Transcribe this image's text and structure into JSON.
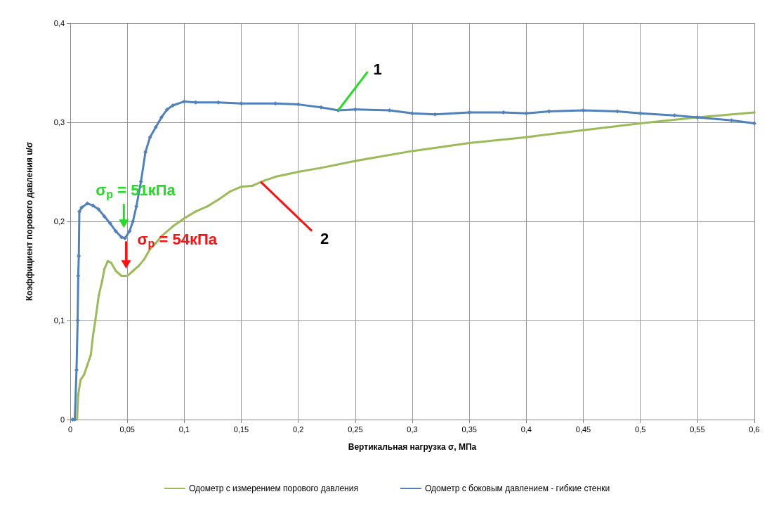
{
  "chart_data": {
    "type": "line",
    "xlabel": "Вертикальная нагрузка σ, МПа",
    "ylabel": "Коэффициент порового давления u/σ",
    "xlim": [
      0,
      0.6
    ],
    "xticks": [
      0,
      {
        "value": 0.05,
        "label": "0,05"
      },
      {
        "value": 0.1,
        "label": "0,1"
      },
      {
        "value": 0.15,
        "label": "0,15"
      },
      {
        "value": 0.2,
        "label": "0,2"
      },
      {
        "value": 0.25,
        "label": "0,25"
      },
      {
        "value": 0.3,
        "label": "0,3"
      },
      {
        "value": 0.35,
        "label": "0,35"
      },
      {
        "value": 0.4,
        "label": "0,4"
      },
      {
        "value": 0.45,
        "label": "0,45"
      },
      {
        "value": 0.5,
        "label": "0,5"
      },
      {
        "value": 0.55,
        "label": "0,55"
      },
      {
        "value": 0.6,
        "label": "0,6"
      }
    ],
    "ylim": [
      0,
      0.4
    ],
    "yticks": [
      0,
      {
        "value": 0.1,
        "label": "0,1"
      },
      {
        "value": 0.2,
        "label": "0,2"
      },
      {
        "value": 0.3,
        "label": "0,3"
      },
      {
        "value": 0.4,
        "label": "0,4"
      }
    ],
    "grid": true,
    "legend": "bottom",
    "marker": "diamond",
    "line_style": "solid",
    "series": [
      {
        "name": "Одометр с измерением порового давления",
        "color": "#9bbb59",
        "x": [
          0.006,
          0.007,
          0.009,
          0.012,
          0.015,
          0.018,
          0.02,
          0.022,
          0.025,
          0.028,
          0.03,
          0.033,
          0.036,
          0.04,
          0.045,
          0.05,
          0.055,
          0.06,
          0.065,
          0.07,
          0.075,
          0.08,
          0.09,
          0.1,
          0.11,
          0.12,
          0.13,
          0.14,
          0.15,
          0.16,
          0.17,
          0.18,
          0.2,
          0.22,
          0.25,
          0.3,
          0.35,
          0.4,
          0.45,
          0.5,
          0.55,
          0.6
        ],
        "values": [
          0,
          0.025,
          0.04,
          0.045,
          0.055,
          0.065,
          0.085,
          0.1,
          0.125,
          0.14,
          0.152,
          0.16,
          0.158,
          0.15,
          0.145,
          0.145,
          0.15,
          0.155,
          0.162,
          0.172,
          0.178,
          0.185,
          0.195,
          0.203,
          0.21,
          0.215,
          0.222,
          0.23,
          0.235,
          0.236,
          0.241,
          0.245,
          0.25,
          0.254,
          0.261,
          0.271,
          0.279,
          0.285,
          0.292,
          0.299,
          0.305,
          0.31
        ]
      },
      {
        "name": "Одометр с боковым давлением - гибкие стенки",
        "color": "#4f81bd",
        "x": [
          0.002,
          0.004,
          0.0055,
          0.0065,
          0.007,
          0.0075,
          0.008,
          0.01,
          0.015,
          0.02,
          0.025,
          0.03,
          0.035,
          0.04,
          0.045,
          0.048,
          0.052,
          0.055,
          0.058,
          0.062,
          0.066,
          0.07,
          0.075,
          0.08,
          0.085,
          0.09,
          0.1,
          0.11,
          0.13,
          0.15,
          0.18,
          0.2,
          0.22,
          0.235,
          0.25,
          0.28,
          0.3,
          0.32,
          0.35,
          0.38,
          0.4,
          0.42,
          0.45,
          0.48,
          0.5,
          0.53,
          0.55,
          0.58,
          0.6
        ],
        "values": [
          0,
          0,
          0.05,
          0.1,
          0.145,
          0.165,
          0.21,
          0.214,
          0.218,
          0.216,
          0.212,
          0.205,
          0.198,
          0.19,
          0.184,
          0.183,
          0.19,
          0.2,
          0.215,
          0.24,
          0.27,
          0.285,
          0.295,
          0.305,
          0.313,
          0.317,
          0.321,
          0.32,
          0.32,
          0.319,
          0.319,
          0.318,
          0.315,
          0.312,
          0.313,
          0.312,
          0.309,
          0.308,
          0.31,
          0.31,
          0.309,
          0.311,
          0.312,
          0.311,
          0.309,
          0.307,
          0.305,
          0.302,
          0.299
        ]
      }
    ],
    "annotations": [
      {
        "text": "σ$_{p}$ = 51кПа",
        "x": 0.047,
        "y": 0.185
      },
      {
        "text": "σ$_{p}$ = 54кПа",
        "x": 0.049,
        "y": 0.148
      },
      {
        "text": "1",
        "x": 0.235,
        "y": 0.312
      },
      {
        "text": "2",
        "x": 0.167,
        "y": 0.24
      }
    ]
  }
}
